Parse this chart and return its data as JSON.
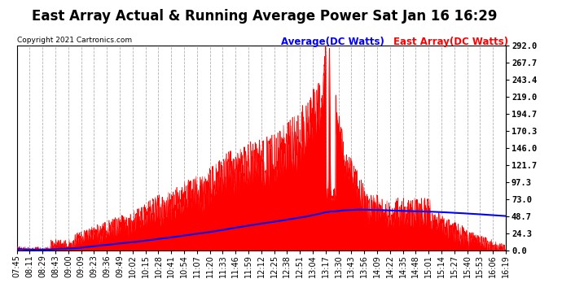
{
  "title": "East Array Actual & Running Average Power Sat Jan 16 16:29",
  "copyright": "Copyright 2021 Cartronics.com",
  "legend_avg": "Average(DC Watts)",
  "legend_east": "East Array(DC Watts)",
  "legend_avg_color": "blue",
  "legend_east_color": "red",
  "ylabel_right_values": [
    0.0,
    24.3,
    48.7,
    73.0,
    97.3,
    121.7,
    146.0,
    170.3,
    194.7,
    219.0,
    243.4,
    267.7,
    292.0
  ],
  "ymax": 292.0,
  "ymin": 0.0,
  "background_color": "#ffffff",
  "grid_color": "#aaaaaa",
  "title_fontsize": 12,
  "tick_fontsize": 7,
  "x_tick_labels": [
    "07:45",
    "08:11",
    "08:29",
    "08:43",
    "09:00",
    "09:09",
    "09:23",
    "09:36",
    "09:49",
    "10:02",
    "10:15",
    "10:28",
    "10:41",
    "10:54",
    "11:07",
    "11:20",
    "11:33",
    "11:46",
    "11:59",
    "12:12",
    "12:25",
    "12:38",
    "12:51",
    "13:04",
    "13:17",
    "13:30",
    "13:43",
    "13:56",
    "14:09",
    "14:22",
    "14:35",
    "14:48",
    "15:01",
    "15:14",
    "15:27",
    "15:40",
    "15:53",
    "16:06",
    "16:19"
  ]
}
